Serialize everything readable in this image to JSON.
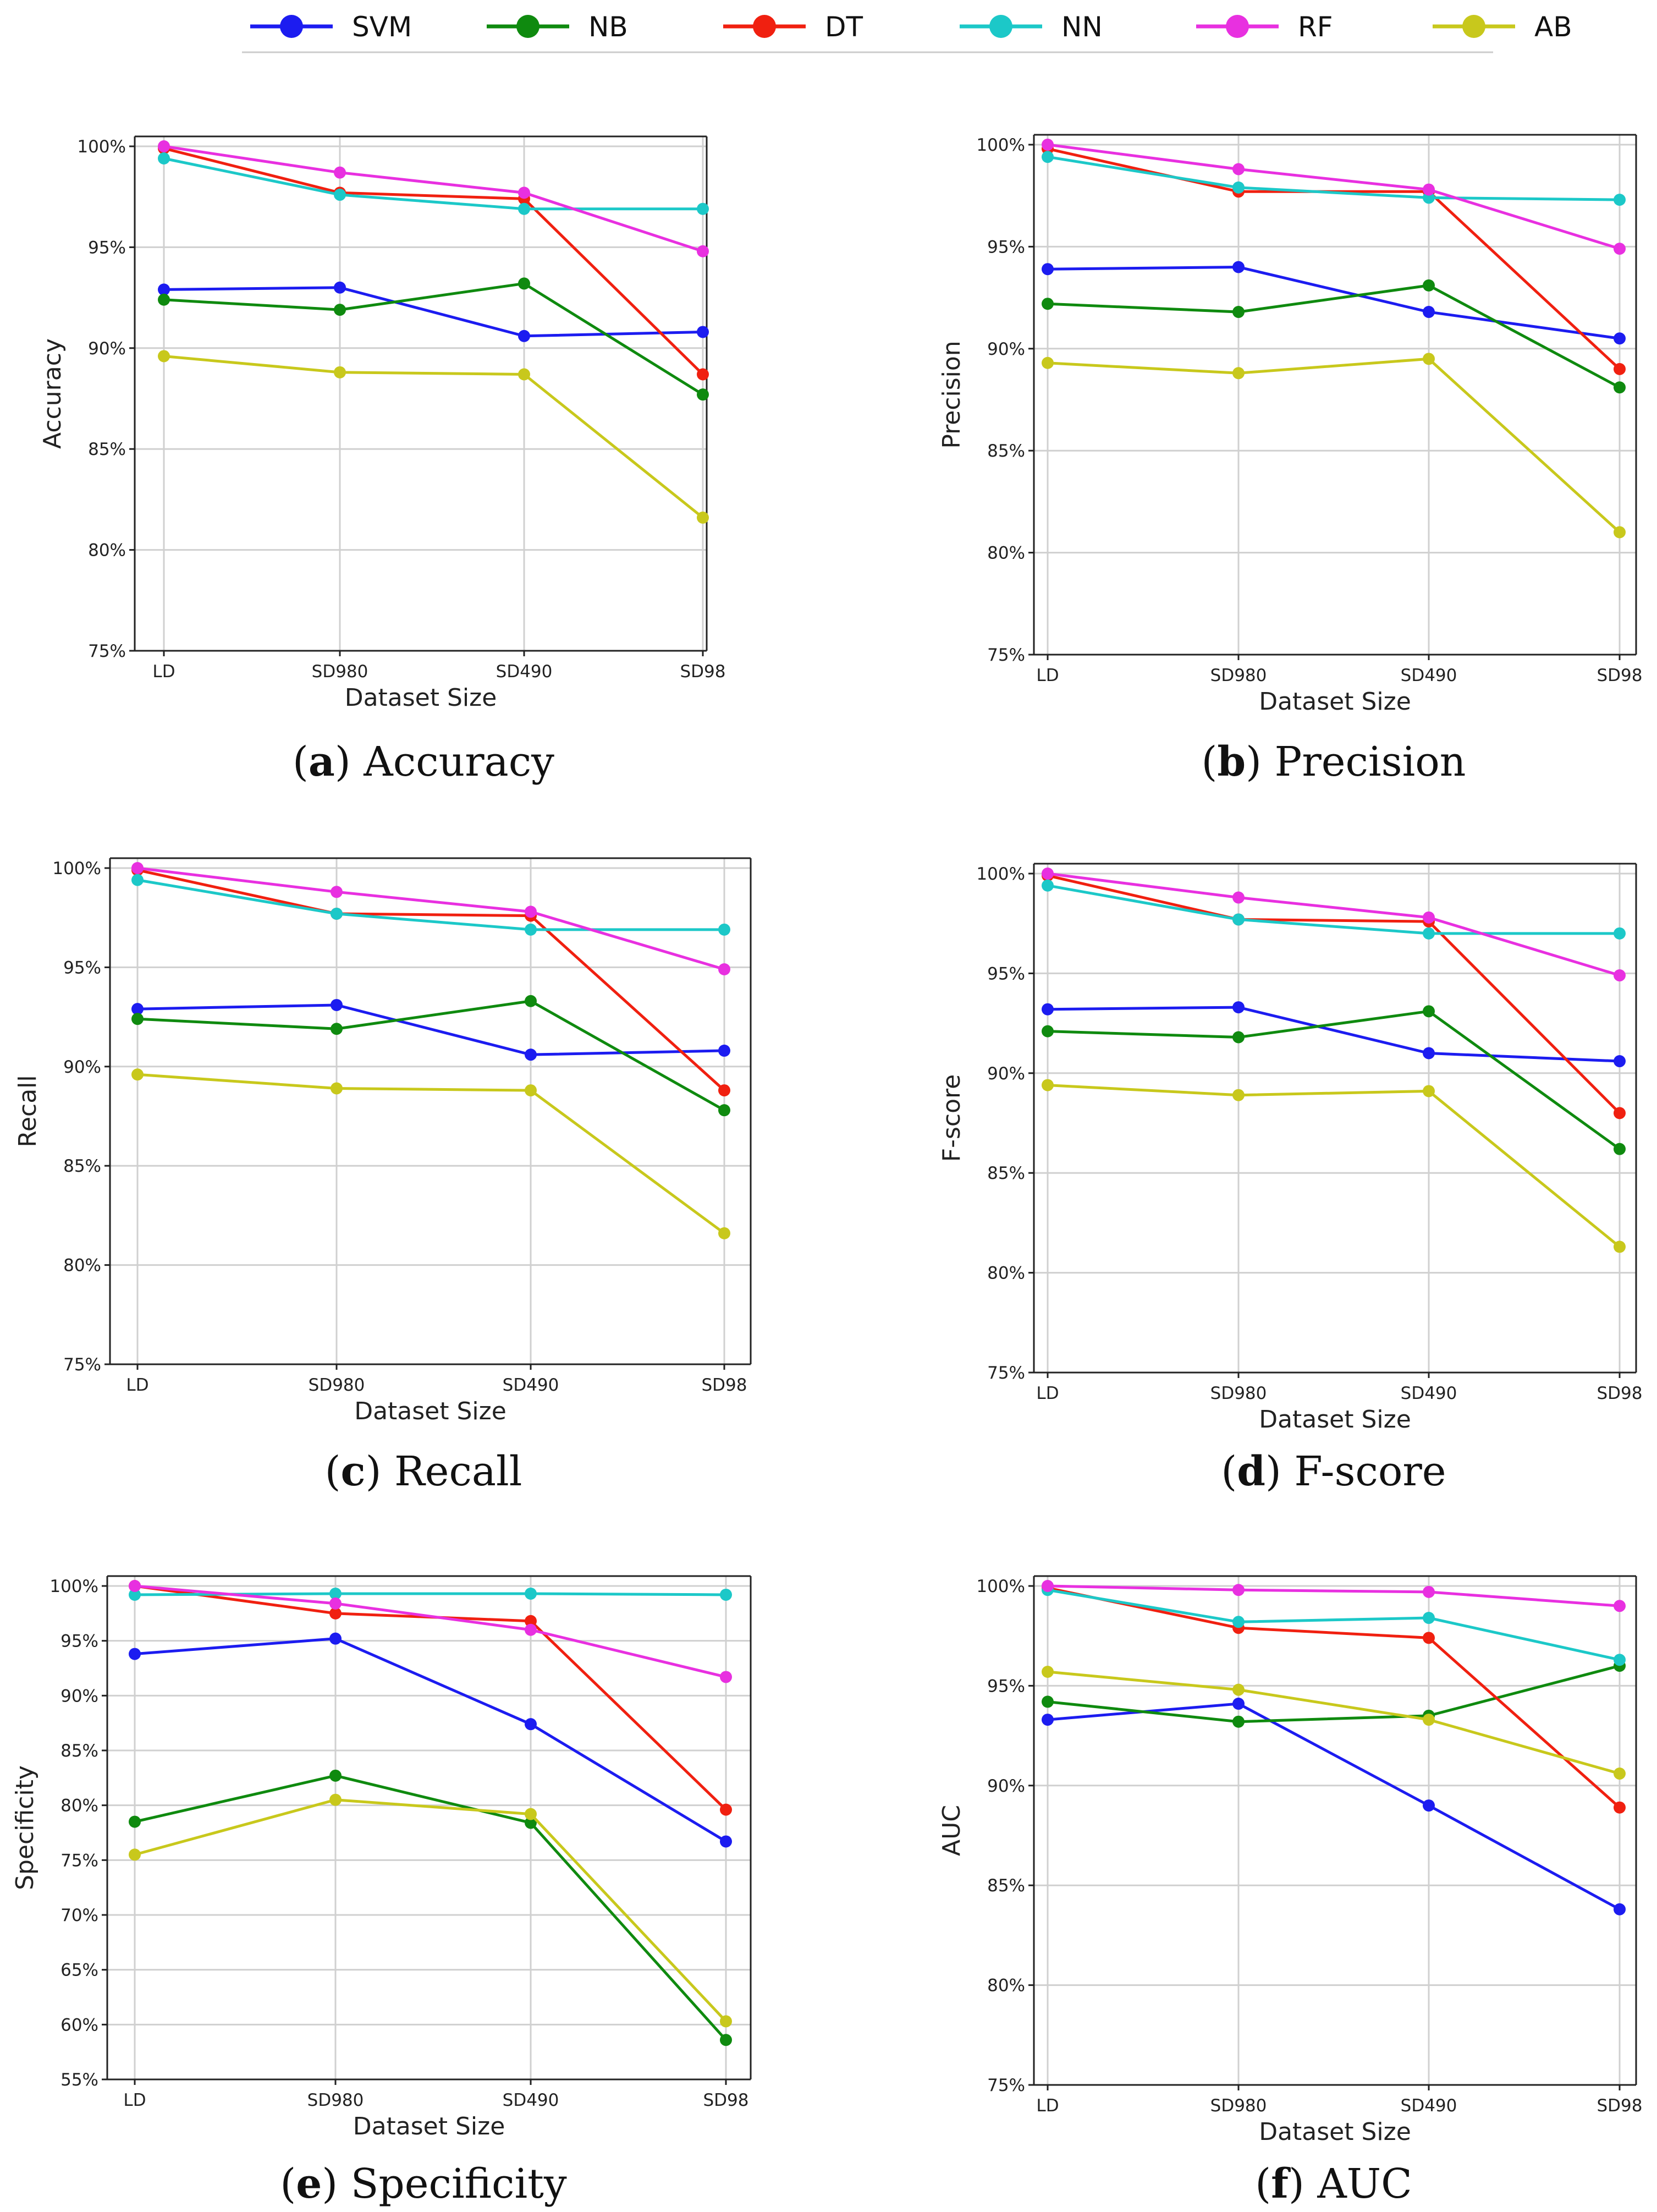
{
  "legend": [
    {
      "name": "SVM",
      "color": "#1c1cf0"
    },
    {
      "name": "NB",
      "color": "#0f8a0f"
    },
    {
      "name": "DT",
      "color": "#f02010"
    },
    {
      "name": "NN",
      "color": "#1cc8c8"
    },
    {
      "name": "RF",
      "color": "#e830e0"
    },
    {
      "name": "AB",
      "color": "#c8c81c"
    }
  ],
  "chart_data": [
    {
      "type": "line",
      "caption_letter": "a",
      "caption_text": "Accuracy",
      "xlabel": "Dataset Size",
      "ylabel": "Accuracy",
      "categories": [
        "LD",
        "SD980",
        "SD490",
        "SD98"
      ],
      "ylim": [
        75,
        100
      ],
      "yticks": [
        75,
        80,
        85,
        90,
        95,
        100
      ],
      "ytick_labels": [
        "75%",
        "80%",
        "85%",
        "90%",
        "95%",
        "100%"
      ],
      "series": [
        {
          "name": "SVM",
          "values": [
            92.9,
            93.0,
            90.6,
            90.8
          ]
        },
        {
          "name": "NB",
          "values": [
            92.4,
            91.9,
            93.2,
            87.7
          ]
        },
        {
          "name": "DT",
          "values": [
            99.9,
            97.7,
            97.4,
            88.7
          ]
        },
        {
          "name": "NN",
          "values": [
            99.4,
            97.6,
            96.9,
            96.9
          ]
        },
        {
          "name": "RF",
          "values": [
            100,
            98.7,
            97.7,
            94.8
          ]
        },
        {
          "name": "AB",
          "values": [
            89.6,
            88.8,
            88.7,
            81.6
          ]
        }
      ]
    },
    {
      "type": "line",
      "caption_letter": "b",
      "caption_text": "Precision",
      "xlabel": "Dataset Size",
      "ylabel": "Precision",
      "categories": [
        "LD",
        "SD980",
        "SD490",
        "SD98"
      ],
      "ylim": [
        75,
        100
      ],
      "yticks": [
        75,
        80,
        85,
        90,
        95,
        100
      ],
      "ytick_labels": [
        "75%",
        "80%",
        "85%",
        "90%",
        "95%",
        "100%"
      ],
      "series": [
        {
          "name": "SVM",
          "values": [
            93.9,
            94.0,
            91.8,
            90.5
          ]
        },
        {
          "name": "NB",
          "values": [
            92.2,
            91.8,
            93.1,
            88.1
          ]
        },
        {
          "name": "DT",
          "values": [
            99.8,
            97.7,
            97.7,
            89.0
          ]
        },
        {
          "name": "NN",
          "values": [
            99.4,
            97.9,
            97.4,
            97.3
          ]
        },
        {
          "name": "RF",
          "values": [
            100,
            98.8,
            97.8,
            94.9
          ]
        },
        {
          "name": "AB",
          "values": [
            89.3,
            88.8,
            89.5,
            81.0
          ]
        }
      ]
    },
    {
      "type": "line",
      "caption_letter": "c",
      "caption_text": "Recall",
      "xlabel": "Dataset Size",
      "ylabel": "Recall",
      "categories": [
        "LD",
        "SD980",
        "SD490",
        "SD98"
      ],
      "ylim": [
        75,
        100
      ],
      "yticks": [
        75,
        80,
        85,
        90,
        95,
        100
      ],
      "ytick_labels": [
        "75%",
        "80%",
        "85%",
        "90%",
        "95%",
        "100%"
      ],
      "series": [
        {
          "name": "SVM",
          "values": [
            92.9,
            93.1,
            90.6,
            90.8
          ]
        },
        {
          "name": "NB",
          "values": [
            92.4,
            91.9,
            93.3,
            87.8
          ]
        },
        {
          "name": "DT",
          "values": [
            99.9,
            97.7,
            97.6,
            88.8
          ]
        },
        {
          "name": "NN",
          "values": [
            99.4,
            97.7,
            96.9,
            96.9
          ]
        },
        {
          "name": "RF",
          "values": [
            100,
            98.8,
            97.8,
            94.9
          ]
        },
        {
          "name": "AB",
          "values": [
            89.6,
            88.9,
            88.8,
            81.6
          ]
        }
      ]
    },
    {
      "type": "line",
      "caption_letter": "d",
      "caption_text": "F-score",
      "xlabel": "Dataset Size",
      "ylabel": "F-score",
      "categories": [
        "LD",
        "SD980",
        "SD490",
        "SD98"
      ],
      "ylim": [
        75,
        100
      ],
      "yticks": [
        75,
        80,
        85,
        90,
        95,
        100
      ],
      "ytick_labels": [
        "75%",
        "80%",
        "85%",
        "90%",
        "95%",
        "100%"
      ],
      "series": [
        {
          "name": "SVM",
          "values": [
            93.2,
            93.3,
            91.0,
            90.6
          ]
        },
        {
          "name": "NB",
          "values": [
            92.1,
            91.8,
            93.1,
            86.2
          ]
        },
        {
          "name": "DT",
          "values": [
            99.9,
            97.7,
            97.6,
            88.0
          ]
        },
        {
          "name": "NN",
          "values": [
            99.4,
            97.7,
            97.0,
            97.0
          ]
        },
        {
          "name": "RF",
          "values": [
            100,
            98.8,
            97.8,
            94.9
          ]
        },
        {
          "name": "AB",
          "values": [
            89.4,
            88.9,
            89.1,
            81.3
          ]
        }
      ]
    },
    {
      "type": "line",
      "caption_letter": "e",
      "caption_text": "Specificity",
      "xlabel": "Dataset Size",
      "ylabel": "Specificity",
      "categories": [
        "LD",
        "SD980",
        "SD490",
        "SD98"
      ],
      "ylim": [
        55,
        100
      ],
      "yticks": [
        55,
        60,
        65,
        70,
        75,
        80,
        85,
        90,
        95,
        100
      ],
      "ytick_labels": [
        "55%",
        "60%",
        "65%",
        "70%",
        "75%",
        "80%",
        "85%",
        "90%",
        "95%",
        "100%"
      ],
      "series": [
        {
          "name": "SVM",
          "values": [
            93.8,
            95.2,
            87.4,
            76.7
          ]
        },
        {
          "name": "NB",
          "values": [
            78.5,
            82.7,
            78.4,
            58.6
          ]
        },
        {
          "name": "DT",
          "values": [
            100,
            97.5,
            96.8,
            79.6
          ]
        },
        {
          "name": "NN",
          "values": [
            99.2,
            99.3,
            99.3,
            99.2
          ]
        },
        {
          "name": "RF",
          "values": [
            100,
            98.4,
            96.0,
            91.7
          ]
        },
        {
          "name": "AB",
          "values": [
            75.5,
            80.5,
            79.2,
            60.3
          ]
        }
      ]
    },
    {
      "type": "line",
      "caption_letter": "f",
      "caption_text": "AUC",
      "xlabel": "Dataset Size",
      "ylabel": "AUC",
      "categories": [
        "LD",
        "SD980",
        "SD490",
        "SD98"
      ],
      "ylim": [
        75,
        100
      ],
      "yticks": [
        75,
        80,
        85,
        90,
        95,
        100
      ],
      "ytick_labels": [
        "75%",
        "80%",
        "85%",
        "90%",
        "95%",
        "100%"
      ],
      "series": [
        {
          "name": "SVM",
          "values": [
            93.3,
            94.1,
            89.0,
            83.8
          ]
        },
        {
          "name": "NB",
          "values": [
            94.2,
            93.2,
            93.5,
            96.0
          ]
        },
        {
          "name": "DT",
          "values": [
            99.9,
            97.9,
            97.4,
            88.9
          ]
        },
        {
          "name": "NN",
          "values": [
            99.8,
            98.2,
            98.4,
            96.3
          ]
        },
        {
          "name": "RF",
          "values": [
            100,
            99.8,
            99.7,
            99.0
          ]
        },
        {
          "name": "AB",
          "values": [
            95.7,
            94.8,
            93.3,
            90.6
          ]
        }
      ]
    }
  ]
}
